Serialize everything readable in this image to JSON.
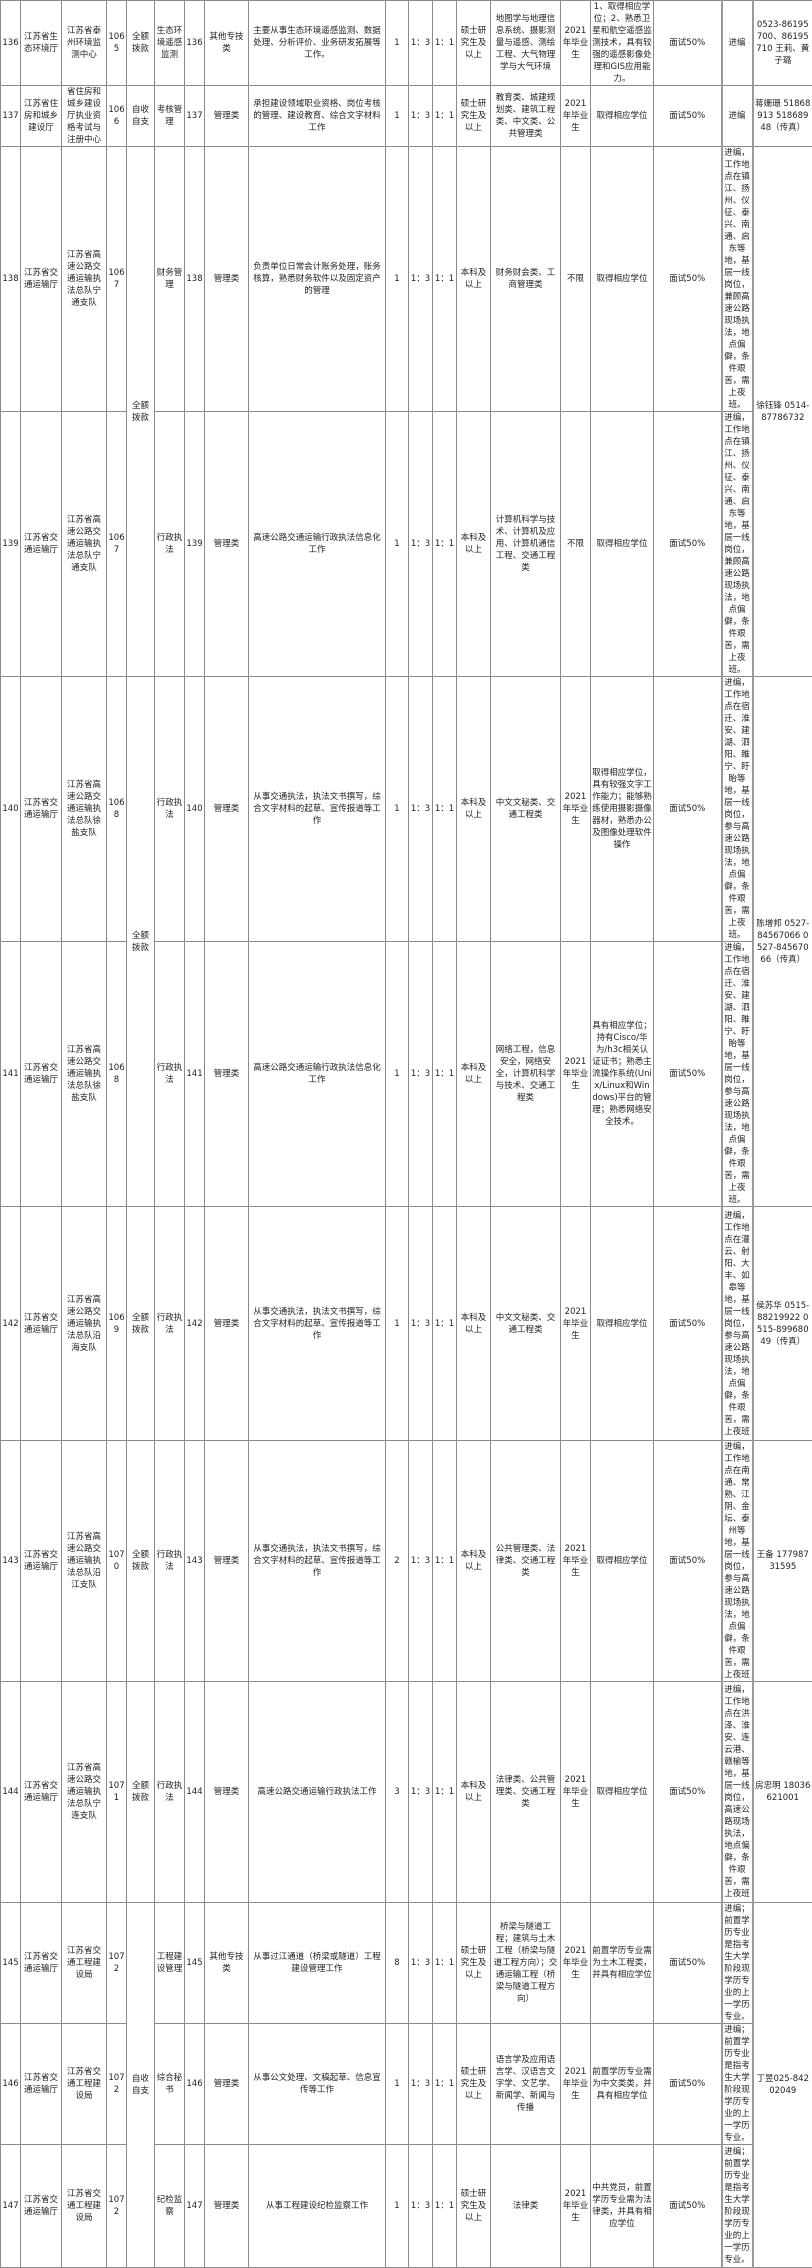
{
  "rows": [
    {
      "no": "136",
      "dept": "江苏省生态环境厅",
      "unit": "江苏省泰州环境监测中心",
      "unit_code": "1065",
      "funding": "全额拨款",
      "position": "生态环境遥感监测",
      "position_code": "136",
      "category": "其他专技类",
      "description": "主要从事生态环境遥感监测、数据处理、分析评价、业务研发拓展等工作。",
      "count": "1",
      "exam_ratio": "1：3",
      "hire_ratio": "1：1",
      "education": "硕士研究生及以上",
      "major": "地图学与地理信息系统、摄影测量与遥感、测绘工程、大气物理学与大气环境",
      "graduate": "2021年毕业生",
      "other": "1、取得相应学位；2、熟悉卫星和航空遥感监测技术，具有较强的遥感影像处理和GIS应用能力。",
      "exam": "面试50%",
      "note": "进编",
      "contact": "0523-86195700、86195710 王莉、黄子璐"
    },
    {
      "no": "137",
      "dept": "江苏省住房和城乡建设厅",
      "unit": "省住房和城乡建设厅执业资格考试与注册中心",
      "unit_code": "1066",
      "funding": "自收自支",
      "position": "考核管理",
      "position_code": "137",
      "category": "管理类",
      "description": "承担建设领域职业资格、岗位考核的管理、建设教育、综合文字材料工作",
      "count": "1",
      "exam_ratio": "1：3",
      "hire_ratio": "1：1",
      "education": "硕士研究生及以上",
      "major": "教育类、城建规划类、建筑工程类、中文类、公共管理类",
      "graduate": "2021年毕业生",
      "other": "取得相应学位",
      "exam": "面试50%",
      "note": "进编",
      "contact": "蒋姗珊 51868913 51868948（传真）"
    },
    {
      "no": "138",
      "dept": "江苏省交通运输厅",
      "unit": "江苏省高速公路交通运输执法总队宁通支队",
      "unit_code": "1067",
      "funding": "全额拨款",
      "position": "财务管理",
      "position_code": "138",
      "category": "管理类",
      "description": "负责单位日常会计账务处理，账务核算，熟悉财务软件以及固定资产的管理",
      "count": "1",
      "exam_ratio": "1：3",
      "hire_ratio": "1：1",
      "education": "本科及以上",
      "major": "财务财会类、工商管理类",
      "graduate": "不限",
      "other": "取得相应学位",
      "exam": "面试50%",
      "note": "进编，工作地点在镇江、扬州、仪征、泰兴、南通、启东等地，基层一线岗位，兼顾高速公路现场执法，地点偏僻，条件艰苦，需上夜班。",
      "contact": "徐钰锋 0514-87786732"
    },
    {
      "no": "139",
      "dept": "江苏省交通运输厅",
      "unit": "江苏省高速公路交通运输执法总队宁通支队",
      "unit_code": "1067",
      "funding": null,
      "position": "行政执法",
      "position_code": "139",
      "category": "管理类",
      "description": "高速公路交通运输行政执法信息化工作",
      "count": "1",
      "exam_ratio": "1：3",
      "hire_ratio": "1：1",
      "education": "本科及以上",
      "major": "计算机科学与技术、计算机及应用、计算机通信工程、交通工程类",
      "graduate": "不限",
      "other": "取得相应学位",
      "exam": "面试50%",
      "note": "进编，工作地点在镇江、扬州、仪征、泰兴、南通、启东等地，基层一线岗位，兼顾高速公路现场执法，地点偏僻，条件艰苦，需上夜班。",
      "contact": null
    },
    {
      "no": "140",
      "dept": "江苏省交通运输厅",
      "unit": "江苏省高速公路交通运输执法总队徐盐支队",
      "unit_code": "1068",
      "funding": "全额拨款",
      "position": "行政执法",
      "position_code": "140",
      "category": "管理类",
      "description": "从事交通执法，执法文书撰写，综合文字材料的起草、宣传报道等工作",
      "count": "1",
      "exam_ratio": "1：3",
      "hire_ratio": "1：1",
      "education": "本科及以上",
      "major": "中文文秘类、交通工程类",
      "graduate": "2021年毕业生",
      "other": "取得相应学位，具有较强文字工作能力；能够熟练使用摄影摄像器材，熟悉办公及图像处理软件操作",
      "exam": "面试50%",
      "note": "进编，工作地点在宿迁、淮安、建湖、泗阳、睢宁、盱眙等地，基层一线岗位，参与高速公路现场执法，地点偏僻，条件艰苦，需上夜班。",
      "contact": "陈增邦 0527-84567066 0527-84567066（传真）"
    },
    {
      "no": "141",
      "dept": "江苏省交通运输厅",
      "unit": "江苏省高速公路交通运输执法总队徐盐支队",
      "unit_code": "1068",
      "funding": null,
      "position": "行政执法",
      "position_code": "141",
      "category": "管理类",
      "description": "高速公路交通运输行政执法信息化工作",
      "count": "1",
      "exam_ratio": "1：3",
      "hire_ratio": "1：1",
      "education": "本科及以上",
      "major": "网络工程，信息安全，网络安全，计算机科学与技术、交通工程类",
      "graduate": "2021年毕业生",
      "other": "具有相应学位；持有Cisco/华为/h3c相关认证证书；熟悉主流操作系统(Unix/Linux和Windows)平台的管理；熟悉网络安全技术。",
      "exam": "面试50%",
      "note": "进编，工作地点在宿迁、淮安、建湖、泗阳、睢宁、盱眙等地，基层一线岗位，参与高速公路现场执法，地点偏僻，条件艰苦，需上夜班。",
      "contact": null
    },
    {
      "no": "142",
      "dept": "江苏省交通运输厅",
      "unit": "江苏省高速公路交通运输执法总队沿海支队",
      "unit_code": "1069",
      "funding": "全额拨款",
      "position": "行政执法",
      "position_code": "142",
      "category": "管理类",
      "description": "从事交通执法，执法文书撰写，综合文字材料的起草、宣传报道等工作",
      "count": "1",
      "exam_ratio": "1：3",
      "hire_ratio": "1：1",
      "education": "本科及以上",
      "major": "中文文秘类、交通工程类",
      "graduate": "2021年毕业生",
      "other": "取得相应学位",
      "exam": "面试50%",
      "note": "进编，工作地点在灌云、射阳、大丰、如皋等地，基层一线岗位，参与高速公路现场执法，地点偏僻，条件艰苦，需上夜班",
      "contact": "侯苏华 0515-88219922 0515-89968049（传真）"
    },
    {
      "no": "143",
      "dept": "江苏省交通运输厅",
      "unit": "江苏省高速公路交通运输执法总队沿江支队",
      "unit_code": "1070",
      "funding": "全额拨款",
      "position": "行政执法",
      "position_code": "143",
      "category": "管理类",
      "description": "从事交通执法，执法文书撰写，综合文字材料的起草、宣传报道等工作",
      "count": "2",
      "exam_ratio": "1：3",
      "hire_ratio": "1：1",
      "education": "本科及以上",
      "major": "公共管理类、法律类、交通工程类",
      "graduate": "2021年毕业生",
      "other": "取得相应学位",
      "exam": "面试50%",
      "note": "进编，工作地点在南通、常熟、江阴、金坛、泰州等地，基层一线岗位，参与高速公路现场执法，地点偏僻，条件艰苦，需上夜班",
      "contact": "王备 17798731595"
    },
    {
      "no": "144",
      "dept": "江苏省交通运输厅",
      "unit": "江苏省高速公路交通运输执法总队宁连支队",
      "unit_code": "1071",
      "funding": "全额拨款",
      "position": "行政执法",
      "position_code": "144",
      "category": "管理类",
      "description": "高速公路交通运输行政执法工作",
      "count": "3",
      "exam_ratio": "1：3",
      "hire_ratio": "1：1",
      "education": "本科及以上",
      "major": "法律类、公共管理类、交通工程类",
      "graduate": "2021年毕业生",
      "other": "取得相应学位",
      "exam": "面试50%",
      "note": "进编，工作地点在洪泽、淮安、连云港、赣榆等地，基层一线岗位，高速公路现场执法，地点偏僻，条件艰苦，需上夜班",
      "contact": "房忠明 18036621001"
    },
    {
      "no": "145",
      "dept": "江苏省交通运输厅",
      "unit": "江苏省交通工程建设局",
      "unit_code": "1072",
      "funding": "自收自支",
      "position": "工程建设管理",
      "position_code": "145",
      "category": "其他专技类",
      "description": "从事过江通道（桥梁或隧道）工程建设管理工作",
      "count": "8",
      "exam_ratio": "1：3",
      "hire_ratio": "1：1",
      "education": "硕士研究生及以上",
      "major": "桥梁与隧道工程；建筑与土木工程（桥梁与隧道工程方向）；交通运输工程（桥梁与隧道工程方向）",
      "graduate": "2021年毕业生",
      "other": "前置学历专业需为土木工程类，并具有相应学位",
      "exam": "面试50%",
      "note": "进编；前置学历专业是指考生大学阶段现学历专业的上一学历专业。",
      "contact": "丁昱025-84202049"
    },
    {
      "no": "146",
      "dept": "江苏省交通运输厅",
      "unit": "江苏省交通工程建设局",
      "unit_code": "1072",
      "funding": null,
      "position": "综合秘书",
      "position_code": "146",
      "category": "管理类",
      "description": "从事公文处理、文稿起草、信息宣传等工作",
      "count": "1",
      "exam_ratio": "1：3",
      "hire_ratio": "1：1",
      "education": "硕士研究生及以上",
      "major": "语言学及应用语言学、汉语言文字学、文艺学、新闻学、新闻与传播",
      "graduate": "2021年毕业生",
      "other": "前置学历专业需为中文类类，并具有相应学位",
      "exam": "面试50%",
      "note": "进编；前置学历专业是指考生大学阶段现学历专业的上一学历专业。",
      "contact": null
    },
    {
      "no": "147",
      "dept": "江苏省交通运输厅",
      "unit": "江苏省交通工程建设局",
      "unit_code": "1072",
      "funding": null,
      "position": "纪检监察",
      "position_code": "147",
      "category": "管理类",
      "description": "从事工程建设纪检监察工作",
      "count": "1",
      "exam_ratio": "1：3",
      "hire_ratio": "1：1",
      "education": "硕士研究生及以上",
      "major": "法律类",
      "graduate": "2021年毕业生",
      "other": "中共党员，前置学历专业需为法律类，并具有相应学位",
      "exam": "面试50%",
      "note": "进编；前置学历专业是指考生大学阶段现学历专业的上一学历专业。",
      "contact": null
    }
  ]
}
